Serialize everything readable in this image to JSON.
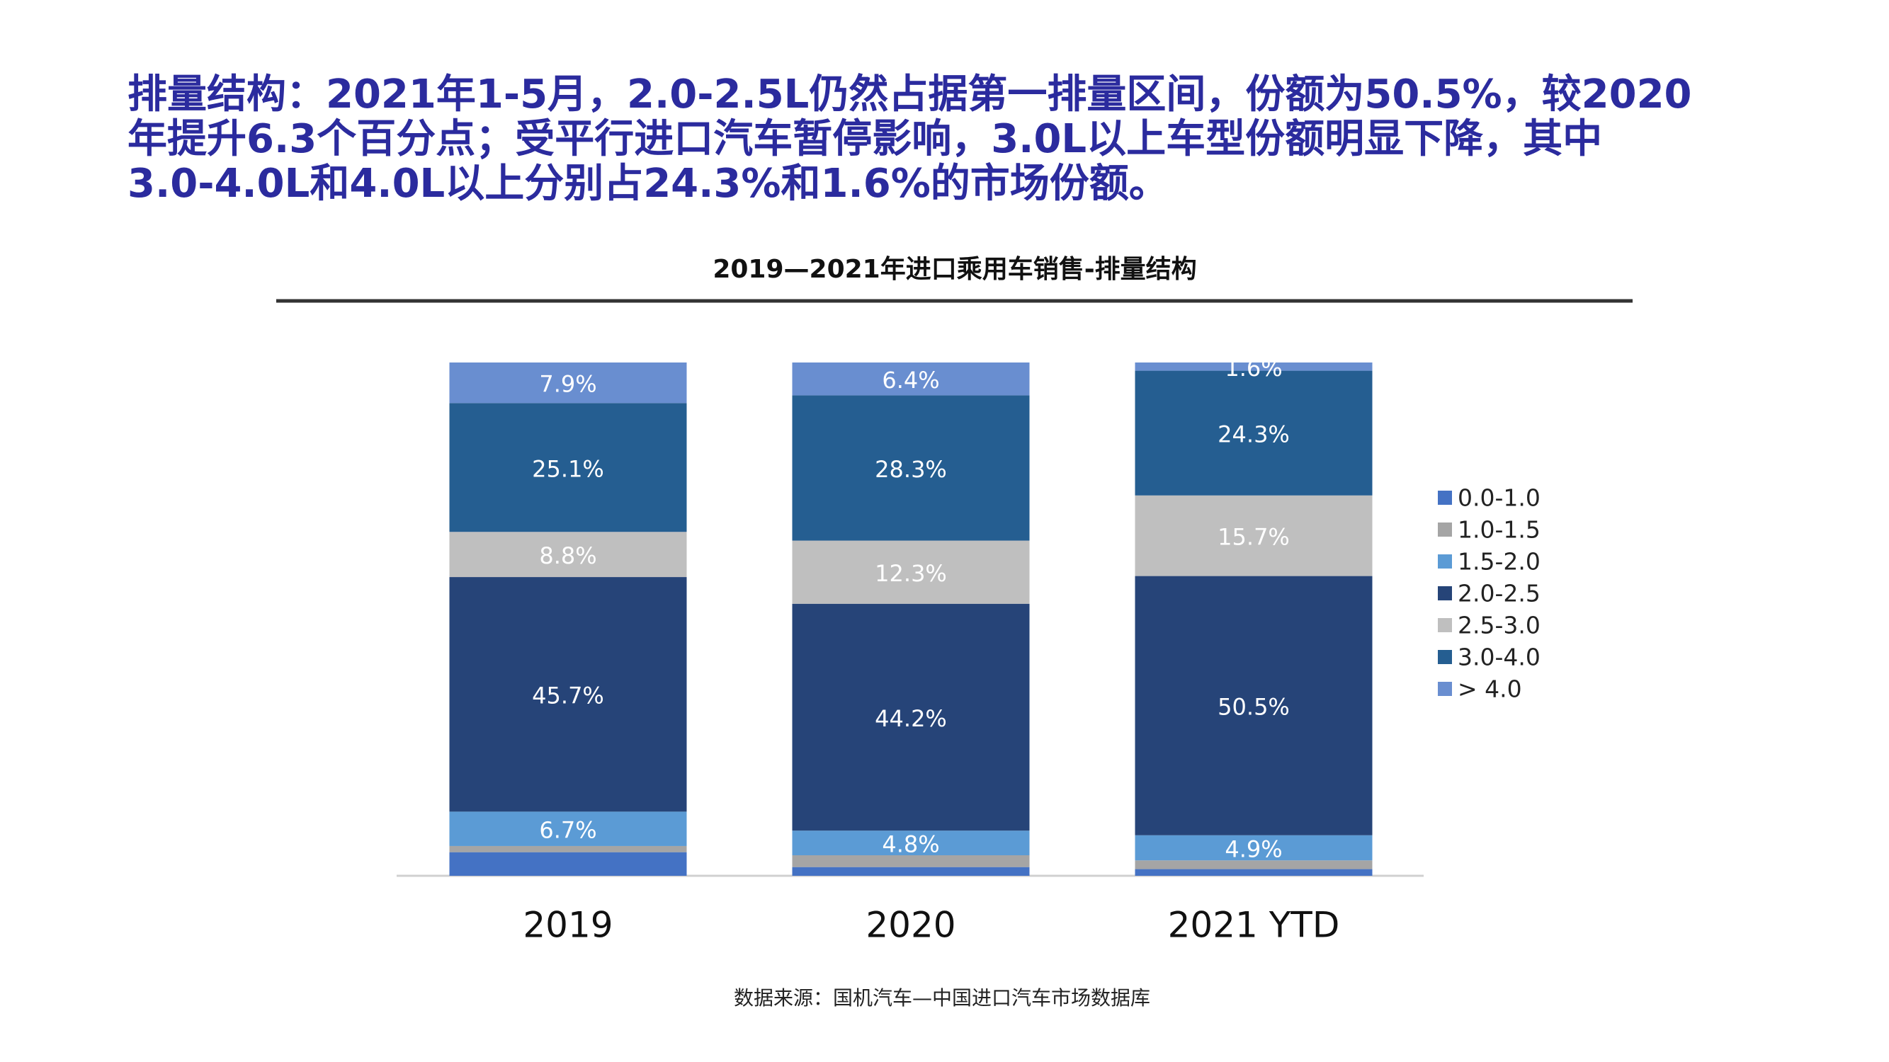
{
  "header": {
    "lines": [
      "排量结构：2021年1-5月，2.0-2.5L仍然占据第一排量区间，份额为50.5%，较2020",
      "年提升6.3个百分点；受平行进口汽车暂停影响，3.0L以上车型份额明显下降，其中",
      "3.0-4.0L和4.0L以上分别占24.3%和1.6%的市场份额。"
    ]
  },
  "chart_data": {
    "type": "stacked_bar",
    "title": "2019—2021年进口乘用车销售-排量结构",
    "categories": [
      "2019",
      "2020",
      "2021 YTD"
    ],
    "ylim": [
      0,
      100
    ],
    "series": [
      {
        "name": "0.0-1.0",
        "color": "#4472c4",
        "values": [
          4.6,
          1.7,
          1.3
        ],
        "value_labels": [
          null,
          null,
          null
        ]
      },
      {
        "name": "1.0-1.5",
        "color": "#a5a5a5",
        "values": [
          1.2,
          2.3,
          1.7
        ],
        "value_labels": [
          null,
          null,
          null
        ]
      },
      {
        "name": "1.5-2.0",
        "color": "#5b9bd5",
        "values": [
          6.7,
          4.8,
          4.9
        ],
        "value_labels": [
          "6.7%",
          "4.8%",
          "4.9%"
        ]
      },
      {
        "name": "2.0-2.5",
        "color": "#264478",
        "values": [
          45.7,
          44.2,
          50.5
        ],
        "value_labels": [
          "45.7%",
          "44.2%",
          "50.5%"
        ]
      },
      {
        "name": "2.5-3.0",
        "color": "#bfbfbf",
        "values": [
          8.8,
          12.3,
          15.7
        ],
        "value_labels": [
          "8.8%",
          "12.3%",
          "15.7%"
        ]
      },
      {
        "name": "3.0-4.0",
        "color": "#255e91",
        "values": [
          25.1,
          28.3,
          24.3
        ],
        "value_labels": [
          "25.1%",
          "28.3%",
          "24.3%"
        ]
      },
      {
        "name": "> 4.0",
        "color": "#698ed0",
        "values": [
          7.9,
          6.4,
          1.6
        ],
        "value_labels": [
          "7.9%",
          "6.4%",
          "1.6%"
        ]
      }
    ],
    "source": "数据来源：国机汽车—中国进口汽车市场数据库"
  }
}
